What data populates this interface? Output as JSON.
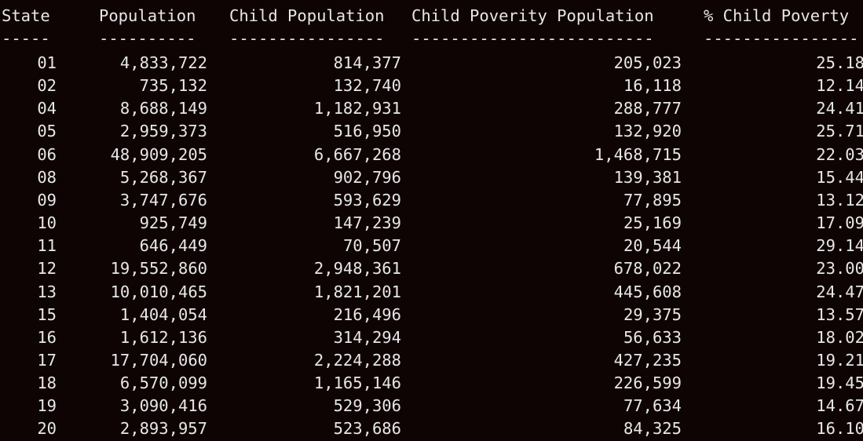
{
  "table": {
    "headers": [
      "State",
      "Population",
      "Child Population",
      "Child Poverity Population",
      "% Child Poverty"
    ],
    "separators": [
      "-----",
      "----------",
      "----------------",
      "-------------------------",
      "----------------"
    ],
    "rows": [
      [
        "01",
        "4,833,722",
        "814,377",
        "205,023",
        "25.18"
      ],
      [
        "02",
        "735,132",
        "132,740",
        "16,118",
        "12.14"
      ],
      [
        "04",
        "8,688,149",
        "1,182,931",
        "288,777",
        "24.41"
      ],
      [
        "05",
        "2,959,373",
        "516,950",
        "132,920",
        "25.71"
      ],
      [
        "06",
        "48,909,205",
        "6,667,268",
        "1,468,715",
        "22.03"
      ],
      [
        "08",
        "5,268,367",
        "902,796",
        "139,381",
        "15.44"
      ],
      [
        "09",
        "3,747,676",
        "593,629",
        "77,895",
        "13.12"
      ],
      [
        "10",
        "925,749",
        "147,239",
        "25,169",
        "17.09"
      ],
      [
        "11",
        "646,449",
        "70,507",
        "20,544",
        "29.14"
      ],
      [
        "12",
        "19,552,860",
        "2,948,361",
        "678,022",
        "23.00"
      ],
      [
        "13",
        "10,010,465",
        "1,821,201",
        "445,608",
        "24.47"
      ],
      [
        "15",
        "1,404,054",
        "216,496",
        "29,375",
        "13.57"
      ],
      [
        "16",
        "1,612,136",
        "314,294",
        "56,633",
        "18.02"
      ],
      [
        "17",
        "17,704,060",
        "2,224,288",
        "427,235",
        "19.21"
      ],
      [
        "18",
        "6,570,099",
        "1,165,146",
        "226,599",
        "19.45"
      ],
      [
        "19",
        "3,090,416",
        "529,306",
        "77,634",
        "14.67"
      ],
      [
        "20",
        "2,893,957",
        "523,686",
        "84,325",
        "16.10"
      ]
    ]
  }
}
